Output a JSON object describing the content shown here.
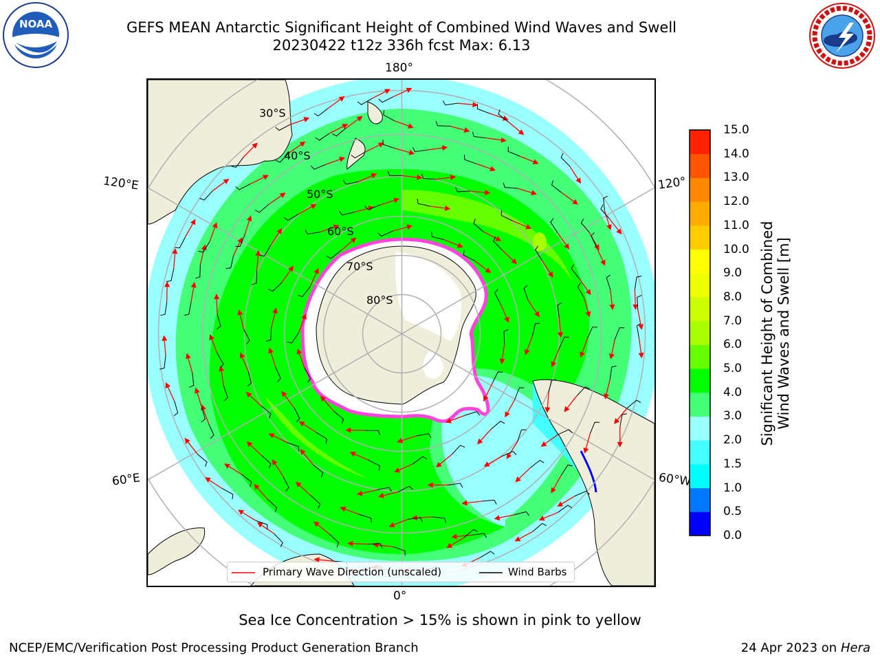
{
  "header": {
    "title_line1": "GEFS MEAN Antarctic Significant Height of Combined Wind Waves and Swell",
    "title_line2": "20230422 t12z 336h fcst   Max: 6.13"
  },
  "logos": {
    "left": {
      "name": "noaa-logo",
      "text": "NOAA"
    },
    "right": {
      "name": "nws-logo",
      "text": "NATIONAL WEATHER SERVICE"
    }
  },
  "map": {
    "projection": "south polar stereographic",
    "longitude_labels": {
      "top": "180°",
      "bottom": "0°",
      "upper_left": "120°E",
      "upper_right": "120°",
      "lower_left": "60°E",
      "lower_right": "60°W"
    },
    "latitude_labels": [
      "30°S",
      "40°S",
      "50°S",
      "60°S",
      "70°S",
      "80°S"
    ],
    "colors": {
      "land": "#efeedb",
      "wave_arrow": "#ff0000",
      "wind_barb": "#000000",
      "sea_ice": "#ff44dd",
      "grid": "#b0b0b0"
    }
  },
  "colorbar": {
    "label": "Significant Height of Combined Wind Waves and Swell [m]",
    "label_line1": "Significant Height of Combined",
    "label_line2": "Wind Waves and Swell [m]",
    "ticks": [
      "15.0",
      "14.0",
      "13.0",
      "12.0",
      "11.0",
      "10.0",
      "9.0",
      "8.0",
      "7.0",
      "6.0",
      "5.0",
      "4.0",
      "3.0",
      "2.0",
      "1.5",
      "1.0",
      "0.5",
      "0.0"
    ],
    "levels": [
      {
        "from": 0.0,
        "to": 0.5,
        "color": "#0000ff"
      },
      {
        "from": 0.5,
        "to": 1.0,
        "color": "#0077ff"
      },
      {
        "from": 1.0,
        "to": 1.5,
        "color": "#00ffff"
      },
      {
        "from": 1.5,
        "to": 2.0,
        "color": "#44ffff"
      },
      {
        "from": 2.0,
        "to": 3.0,
        "color": "#99ffff"
      },
      {
        "from": 3.0,
        "to": 4.0,
        "color": "#44ff77"
      },
      {
        "from": 4.0,
        "to": 5.0,
        "color": "#00ff00"
      },
      {
        "from": 5.0,
        "to": 6.0,
        "color": "#66ff00"
      },
      {
        "from": 6.0,
        "to": 7.0,
        "color": "#aaff00"
      },
      {
        "from": 7.0,
        "to": 8.0,
        "color": "#ccff00"
      },
      {
        "from": 8.0,
        "to": 9.0,
        "color": "#eeff00"
      },
      {
        "from": 9.0,
        "to": 10.0,
        "color": "#ffff00"
      },
      {
        "from": 10.0,
        "to": 11.0,
        "color": "#ffcc00"
      },
      {
        "from": 11.0,
        "to": 12.0,
        "color": "#ffaa00"
      },
      {
        "from": 12.0,
        "to": 13.0,
        "color": "#ff8800"
      },
      {
        "from": 13.0,
        "to": 14.0,
        "color": "#ff5500"
      },
      {
        "from": 14.0,
        "to": 15.0,
        "color": "#ff2200"
      }
    ]
  },
  "legend": {
    "wave_direction": "Primary Wave Direction (unscaled)",
    "wind_barbs": "Wind Barbs"
  },
  "notes": {
    "sea_ice": "Sea Ice Concentration > 15% is shown in pink to yellow"
  },
  "footer": {
    "left": "NCEP/EMC/Verification Post Processing Product Generation Branch",
    "right_date": "24 Apr 2023 on",
    "right_host": "Hera"
  }
}
